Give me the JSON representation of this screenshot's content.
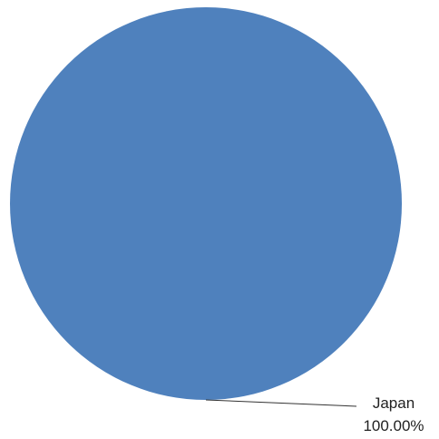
{
  "chart_data": {
    "type": "pie",
    "slices": [
      {
        "label": "Japan",
        "value": 100.0,
        "percent_label": "100.00%"
      }
    ],
    "colors": {
      "Japan": "#4f81bd"
    }
  }
}
